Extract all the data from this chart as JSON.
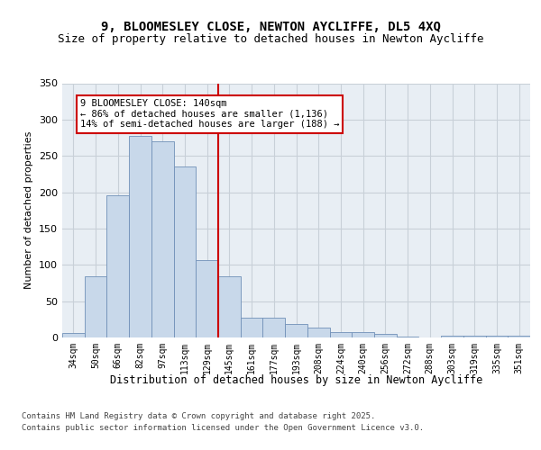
{
  "title_line1": "9, BLOOMESLEY CLOSE, NEWTON AYCLIFFE, DL5 4XQ",
  "title_line2": "Size of property relative to detached houses in Newton Aycliffe",
  "xlabel": "Distribution of detached houses by size in Newton Aycliffe",
  "ylabel": "Number of detached properties",
  "categories": [
    "34sqm",
    "50sqm",
    "66sqm",
    "82sqm",
    "97sqm",
    "113sqm",
    "129sqm",
    "145sqm",
    "161sqm",
    "177sqm",
    "193sqm",
    "208sqm",
    "224sqm",
    "240sqm",
    "256sqm",
    "272sqm",
    "288sqm",
    "303sqm",
    "319sqm",
    "335sqm",
    "351sqm"
  ],
  "values": [
    6,
    84,
    196,
    278,
    270,
    236,
    106,
    84,
    27,
    27,
    18,
    14,
    8,
    8,
    5,
    1,
    0,
    3,
    2,
    2,
    2
  ],
  "bar_color": "#c8d8ea",
  "bar_edge_color": "#7090b8",
  "vline_color": "#cc0000",
  "vline_x": 6.5,
  "annotation_text": "9 BLOOMESLEY CLOSE: 140sqm\n← 86% of detached houses are smaller (1,136)\n14% of semi-detached houses are larger (188) →",
  "annotation_box_edge_color": "#cc0000",
  "ylim": [
    0,
    350
  ],
  "grid_color": "#c8d0d8",
  "bg_color": "#e8eef4",
  "fig_bg_color": "#ffffff",
  "footer_line1": "Contains HM Land Registry data © Crown copyright and database right 2025.",
  "footer_line2": "Contains public sector information licensed under the Open Government Licence v3.0.",
  "title_fontsize": 10,
  "subtitle_fontsize": 9,
  "ann_fontsize": 7.5,
  "footer_fontsize": 6.5,
  "ylabel_fontsize": 8,
  "xlabel_fontsize": 8.5
}
